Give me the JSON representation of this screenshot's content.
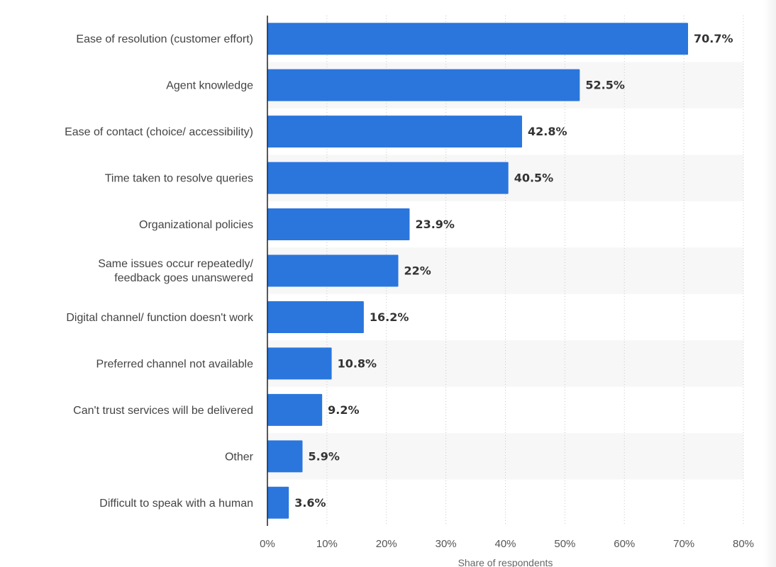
{
  "chart_data": {
    "type": "bar",
    "orientation": "horizontal",
    "title": "",
    "xlabel": "Share of respondents",
    "ylabel": "",
    "xlim": [
      0,
      80
    ],
    "x_ticks": [
      0,
      10,
      20,
      30,
      40,
      50,
      60,
      70,
      80
    ],
    "x_tick_labels": [
      "0%",
      "10%",
      "20%",
      "30%",
      "40%",
      "50%",
      "60%",
      "70%",
      "80%"
    ],
    "grid": true,
    "bar_color": "#2a76dd",
    "categories": [
      "Ease of resolution (customer effort)",
      "Agent knowledge",
      "Ease of contact (choice/ accessibility)",
      "Time taken to resolve queries",
      "Organizational policies",
      "Same issues occur repeatedly/ feedback goes unanswered",
      "Digital channel/ function doesn't work",
      "Preferred channel not available",
      "Can't trust services will be delivered",
      "Other",
      "Difficult to speak with a human"
    ],
    "values": [
      70.7,
      52.5,
      42.8,
      40.5,
      23.9,
      22,
      16.2,
      10.8,
      9.2,
      5.9,
      3.6
    ],
    "value_labels": [
      "70.7%",
      "52.5%",
      "42.8%",
      "40.5%",
      "23.9%",
      "22%",
      "16.2%",
      "10.8%",
      "9.2%",
      "5.9%",
      "3.6%"
    ]
  }
}
